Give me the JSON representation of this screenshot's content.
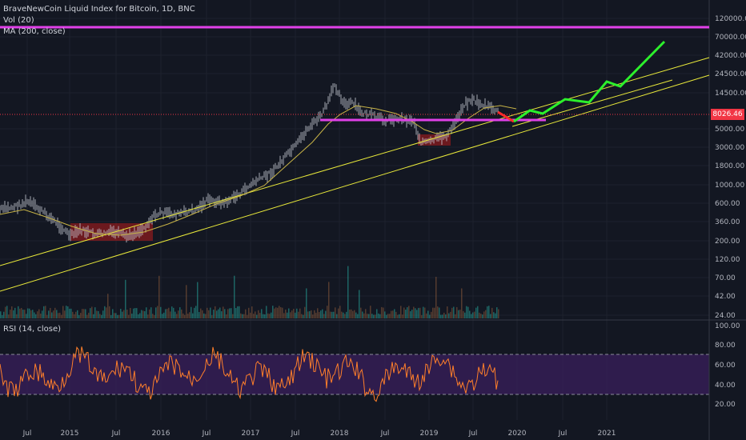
{
  "legend": {
    "symbol": "BraveNewCoin Liquid Index for Bitcoin, 1D, BNC",
    "volume": "Vol (20)",
    "ma": "MA (200, close)",
    "rsi": "RSI (14, close)"
  },
  "last_price": "8026.46",
  "colors": {
    "background": "#131722",
    "grid": "#1e222d",
    "candles": "#c9cdd6",
    "trendlines": "#e8e83a",
    "ma": "#c8b447",
    "magenta": "#e040e8",
    "projection": "#2cf02c",
    "drop": "#ff2a2a",
    "zone": "#b71c1c",
    "rsi_line": "#ff7f2a",
    "rsi_band": "#3a1f5c",
    "volume": "#8a5a3a"
  },
  "chart_data": [
    {
      "type": "line",
      "title": "BraveNewCoin Liquid Index for Bitcoin, 1D, BNC",
      "y_scale": "log",
      "y_tick_labels": [
        "120000.00",
        "70000.00",
        "42000.00",
        "24500.00",
        "14500.00",
        "8026.46",
        "5000.00",
        "3000.00",
        "1800.00",
        "1000.00",
        "600.00",
        "360.00",
        "200.00",
        "120.00",
        "70.00",
        "42.00",
        "24.00"
      ],
      "x_tick_labels": [
        "Jul",
        "2015",
        "Jul",
        "2016",
        "Jul",
        "2017",
        "Jul",
        "2018",
        "Jul",
        "2019",
        "Jul",
        "2020",
        "Jul",
        "2021"
      ],
      "series": [
        {
          "name": "BTC",
          "x": [
            "2014-06",
            "2014-09",
            "2015-01",
            "2015-04",
            "2015-07",
            "2015-10",
            "2016-01",
            "2016-06",
            "2016-10",
            "2017-01",
            "2017-05",
            "2017-08",
            "2017-12",
            "2018-02",
            "2018-06",
            "2018-10",
            "2018-12",
            "2019-03",
            "2019-06",
            "2019-09",
            "2019-11"
          ],
          "values": [
            600,
            420,
            210,
            250,
            280,
            240,
            420,
            650,
            700,
            950,
            2000,
            4000,
            17000,
            9000,
            6500,
            6300,
            3500,
            3900,
            11000,
            9000,
            8026
          ]
        },
        {
          "name": "MA (200, close)",
          "x": [
            "2014-06",
            "2015-01",
            "2015-07",
            "2016-01",
            "2016-07",
            "2017-01",
            "2017-07",
            "2017-12",
            "2018-05",
            "2018-10",
            "2019-03",
            "2019-08",
            "2019-11"
          ],
          "values": [
            550,
            380,
            260,
            300,
            450,
            650,
            1300,
            5500,
            9000,
            7500,
            5000,
            8000,
            9500
          ]
        }
      ]
    },
    {
      "type": "line",
      "title": "RSI (14, close)",
      "y_tick_labels": [
        "100.00",
        "80.00",
        "60.00",
        "40.00",
        "20.00"
      ],
      "band": [
        30,
        70
      ]
    }
  ]
}
